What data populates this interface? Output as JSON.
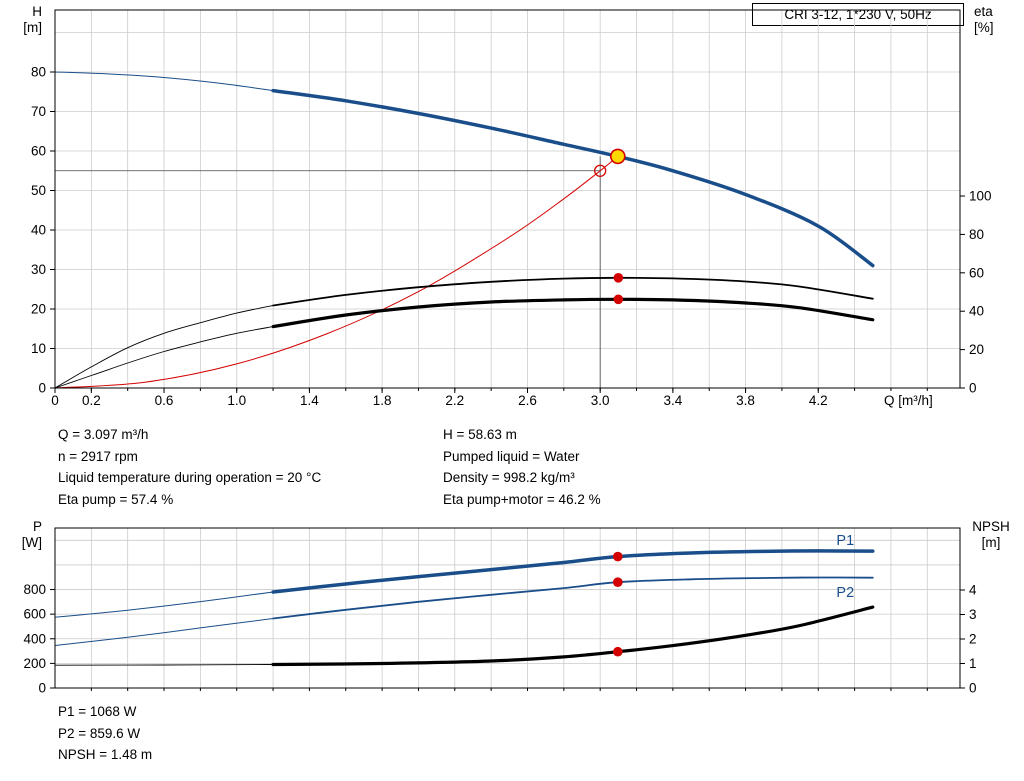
{
  "axes": {
    "top_left_1": "H",
    "top_left_2": "[m]",
    "top_right_1": "eta",
    "top_right_2": "[%]",
    "bottom_left_1": "P",
    "bottom_left_2": "[W]",
    "bottom_right_1": "NPSH",
    "bottom_right_2": "[m]",
    "x_label": "Q [m³/h]"
  },
  "colors": {
    "blue": "#1a4e8a",
    "black": "#000000",
    "red": "#d40000",
    "duty_fill": "#ffd800",
    "grid": "#cccccc",
    "crosshair": "#444444"
  },
  "info": {
    "left": [
      "Q = 3.097 m³/h",
      "n = 2917 rpm",
      "Liquid temperature during operation = 20 °C",
      "Eta pump = 57.4 %"
    ],
    "right": [
      "H = 58.63 m",
      "Pumped liquid = Water",
      "Density = 998.2 kg/m³",
      "Eta pump+motor = 46.2 %"
    ],
    "bottom": [
      "P1 = 1068 W",
      "P2 = 859.6 W",
      "NPSH = 1.48 m"
    ]
  },
  "chart_data": [
    {
      "id": "qh",
      "type": "line",
      "title": "CRI 3-12, 1*230 V, 50Hz",
      "xlabel": "Q [m³/h]",
      "ylabel": "H [m]",
      "y2label": "eta [%]",
      "xlim": [
        0,
        4.98
      ],
      "ylim": [
        0,
        95.7
      ],
      "y2lim": [
        0,
        196.9
      ],
      "x_grid_step": 0.2,
      "x_ticks": [
        "0",
        "0.2",
        "0.6",
        "1.0",
        "1.4",
        "1.8",
        "2.2",
        "2.6",
        "3.0",
        "3.4",
        "3.8",
        "4.2"
      ],
      "y_ticks": [
        0,
        10,
        20,
        30,
        40,
        50,
        60,
        70,
        80
      ],
      "y_grid": [
        10,
        20,
        30,
        40,
        50,
        60,
        70,
        80,
        90
      ],
      "y2_ticks": [
        0,
        20,
        40,
        60,
        80,
        100
      ],
      "crosshair": {
        "q": 3.0,
        "v": 55,
        "v_top": 58.63
      },
      "series": [
        {
          "name": "pump-curve-lead",
          "axis": "y",
          "color": "#1a4e8a",
          "width": 1,
          "points": [
            [
              0,
              80
            ],
            [
              0.3,
              79.5
            ],
            [
              0.6,
              78.6
            ],
            [
              0.9,
              77.2
            ],
            [
              1.2,
              75.3
            ]
          ]
        },
        {
          "name": "pump-curve",
          "axis": "y",
          "color": "#1a4e8a",
          "width": 3.5,
          "points": [
            [
              1.2,
              75.3
            ],
            [
              1.6,
              72.7
            ],
            [
              2.0,
              69.5
            ],
            [
              2.4,
              65.8
            ],
            [
              2.8,
              61.7
            ],
            [
              3.097,
              58.63
            ],
            [
              3.4,
              55
            ],
            [
              3.8,
              49
            ],
            [
              4.2,
              41
            ],
            [
              4.5,
              31
            ]
          ]
        },
        {
          "name": "system-curve",
          "axis": "y",
          "color": "#d40000",
          "width": 1,
          "points": [
            [
              0,
              0
            ],
            [
              0.5,
              1.5
            ],
            [
              1.0,
              6.1
            ],
            [
              1.5,
              13.8
            ],
            [
              2.0,
              24.4
            ],
            [
              2.5,
              38.2
            ],
            [
              2.8,
              47.9
            ],
            [
              3.0,
              55
            ],
            [
              3.097,
              58.63
            ]
          ]
        },
        {
          "name": "eta-pump-lead",
          "axis": "y2",
          "color": "#000000",
          "width": 0.9,
          "points": [
            [
              0,
              0
            ],
            [
              0.2,
              11
            ],
            [
              0.4,
              21
            ],
            [
              0.6,
              28.5
            ],
            [
              0.8,
              34
            ],
            [
              1.0,
              39
            ],
            [
              1.2,
              43
            ]
          ]
        },
        {
          "name": "eta-pump",
          "axis": "y2",
          "color": "#000000",
          "width": 1.8,
          "points": [
            [
              1.2,
              43
            ],
            [
              1.6,
              48.5
            ],
            [
              2.0,
              52.5
            ],
            [
              2.4,
              55.3
            ],
            [
              2.8,
              57
            ],
            [
              3.1,
              57.4
            ],
            [
              3.4,
              57.1
            ],
            [
              3.8,
              55.5
            ],
            [
              4.1,
              52.8
            ],
            [
              4.5,
              46.5
            ]
          ]
        },
        {
          "name": "eta-pump-motor-lead",
          "axis": "y2",
          "color": "#000000",
          "width": 0.9,
          "points": [
            [
              0,
              0
            ],
            [
              0.2,
              6.5
            ],
            [
              0.4,
              13
            ],
            [
              0.6,
              19
            ],
            [
              0.8,
              24
            ],
            [
              1.0,
              28.5
            ],
            [
              1.2,
              32
            ]
          ]
        },
        {
          "name": "eta-pump-motor",
          "axis": "y2",
          "color": "#000000",
          "width": 3.2,
          "points": [
            [
              1.2,
              32
            ],
            [
              1.6,
              38
            ],
            [
              2.0,
              42.2
            ],
            [
              2.4,
              44.8
            ],
            [
              2.8,
              45.9
            ],
            [
              3.1,
              46.2
            ],
            [
              3.4,
              45.9
            ],
            [
              3.8,
              44.3
            ],
            [
              4.1,
              41.8
            ],
            [
              4.5,
              35.5
            ]
          ]
        }
      ],
      "markers": [
        {
          "type": "open",
          "q": 3.0,
          "v": 55,
          "axis": "y"
        },
        {
          "type": "duty",
          "q": 3.097,
          "v": 58.63,
          "axis": "y"
        },
        {
          "type": "dot",
          "q": 3.1,
          "v": 57.4,
          "axis": "y2"
        },
        {
          "type": "dot",
          "q": 3.1,
          "v": 46.2,
          "axis": "y2"
        }
      ]
    },
    {
      "id": "pn",
      "type": "line",
      "title": "",
      "xlabel": "Q [m³/h]",
      "ylabel": "P [W]",
      "y2label": "NPSH [m]",
      "xlim": [
        0,
        4.98
      ],
      "ylim": [
        0,
        1300
      ],
      "y2lim": [
        0,
        6.53
      ],
      "x_grid_step": 0.2,
      "x_ticks": [],
      "y_ticks": [
        0,
        200,
        400,
        600,
        800
      ],
      "y_grid": [
        200,
        400,
        600,
        800,
        1000,
        1200
      ],
      "y2_ticks": [
        0,
        1,
        2,
        3,
        4
      ],
      "series": [
        {
          "name": "p1-curve-lead",
          "axis": "y",
          "color": "#1a4e8a",
          "width": 1,
          "points": [
            [
              0,
              575
            ],
            [
              0.4,
              632
            ],
            [
              0.8,
              702
            ],
            [
              1.2,
              780
            ]
          ]
        },
        {
          "name": "p1-curve",
          "axis": "y",
          "color": "#1a4e8a",
          "width": 3.5,
          "points": [
            [
              1.2,
              780
            ],
            [
              1.6,
              845
            ],
            [
              2.0,
              905
            ],
            [
              2.4,
              962
            ],
            [
              2.8,
              1020
            ],
            [
              3.097,
              1068
            ],
            [
              3.5,
              1097
            ],
            [
              3.9,
              1110
            ],
            [
              4.2,
              1114
            ],
            [
              4.5,
              1112
            ]
          ]
        },
        {
          "name": "p2-curve-lead",
          "axis": "y",
          "color": "#1a4e8a",
          "width": 1,
          "points": [
            [
              0,
              345
            ],
            [
              0.4,
              412
            ],
            [
              0.8,
              488
            ],
            [
              1.2,
              565
            ]
          ]
        },
        {
          "name": "p2-curve",
          "axis": "y",
          "color": "#1a4e8a",
          "width": 1.8,
          "points": [
            [
              1.2,
              565
            ],
            [
              1.6,
              635
            ],
            [
              2.0,
              700
            ],
            [
              2.4,
              757
            ],
            [
              2.8,
              812
            ],
            [
              3.097,
              859.6
            ],
            [
              3.5,
              883
            ],
            [
              3.9,
              894
            ],
            [
              4.2,
              898
            ],
            [
              4.5,
              896
            ]
          ]
        },
        {
          "name": "npsh-curve-lead",
          "axis": "y2",
          "color": "#000000",
          "width": 0.9,
          "points": [
            [
              0,
              0.93
            ],
            [
              0.6,
              0.94
            ],
            [
              1.2,
              0.96
            ]
          ]
        },
        {
          "name": "npsh-curve",
          "axis": "y2",
          "color": "#000000",
          "width": 3.2,
          "points": [
            [
              1.2,
              0.96
            ],
            [
              1.8,
              1.0
            ],
            [
              2.4,
              1.1
            ],
            [
              2.8,
              1.27
            ],
            [
              3.097,
              1.48
            ],
            [
              3.4,
              1.73
            ],
            [
              3.8,
              2.15
            ],
            [
              4.1,
              2.55
            ],
            [
              4.5,
              3.3
            ]
          ]
        }
      ],
      "curve_labels": [
        {
          "text": "P1",
          "q": 4.3,
          "v": 1160,
          "axis": "y"
        },
        {
          "text": "P2",
          "q": 4.3,
          "v": 740,
          "axis": "y"
        }
      ],
      "markers": [
        {
          "type": "dot",
          "q": 3.097,
          "v": 1068,
          "axis": "y"
        },
        {
          "type": "dot",
          "q": 3.097,
          "v": 859.6,
          "axis": "y"
        },
        {
          "type": "dot",
          "q": 3.097,
          "v": 1.48,
          "axis": "y2"
        }
      ]
    }
  ]
}
